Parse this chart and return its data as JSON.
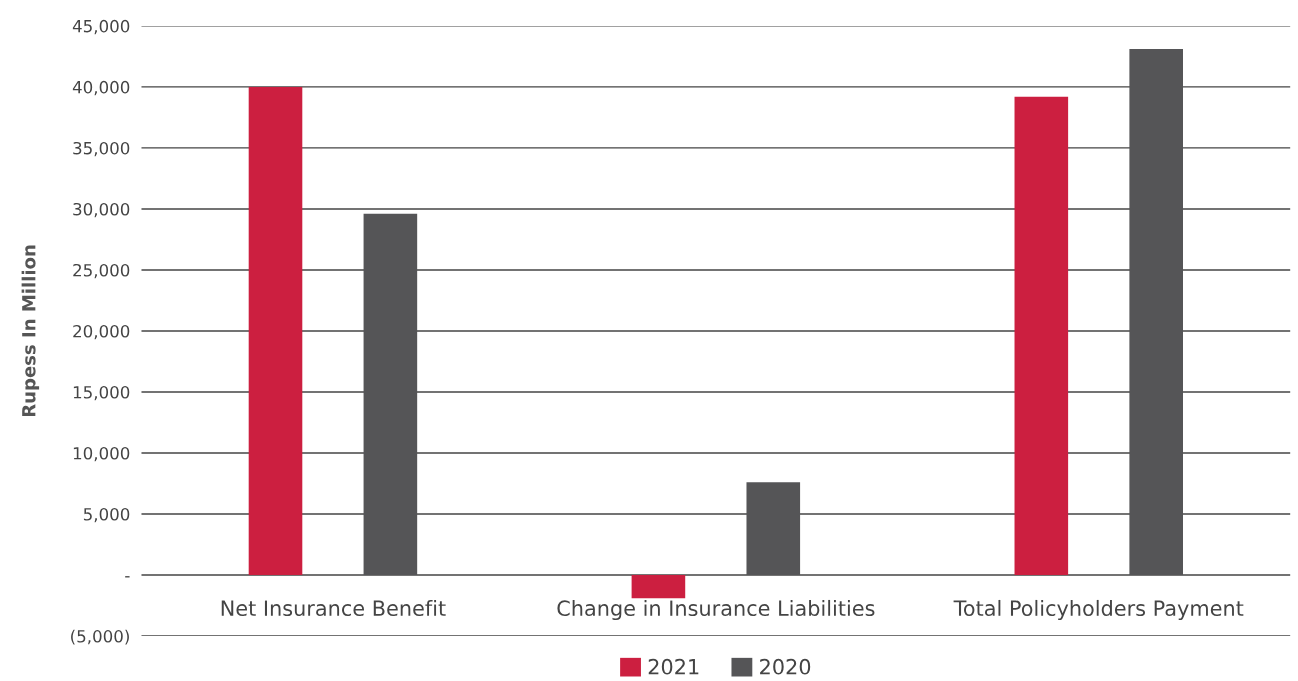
{
  "chart_data": {
    "type": "bar",
    "ylabel": "Rupess In Million",
    "categories": [
      "Net Insurance Benefit",
      "Change in Insurance Liabilities",
      "Total Policyholders Payment"
    ],
    "series": [
      {
        "name": "2021",
        "color": "#cc1f40",
        "values": [
          40000,
          -1900,
          39200
        ]
      },
      {
        "name": "2020",
        "color": "#555557",
        "values": [
          29600,
          7600,
          43100
        ]
      }
    ],
    "ylim": [
      -5000,
      45000
    ],
    "yticks": [
      {
        "value": -5000,
        "label": "(5,000)"
      },
      {
        "value": 0,
        "label": "-"
      },
      {
        "value": 5000,
        "label": "5,000"
      },
      {
        "value": 10000,
        "label": "10,000"
      },
      {
        "value": 15000,
        "label": "15,000"
      },
      {
        "value": 20000,
        "label": "20,000"
      },
      {
        "value": 25000,
        "label": "25,000"
      },
      {
        "value": 30000,
        "label": "30,000"
      },
      {
        "value": 35000,
        "label": "35,000"
      },
      {
        "value": 40000,
        "label": "40,000"
      },
      {
        "value": 45000,
        "label": "45,000"
      }
    ],
    "grid": "y",
    "legend": "bottom"
  }
}
